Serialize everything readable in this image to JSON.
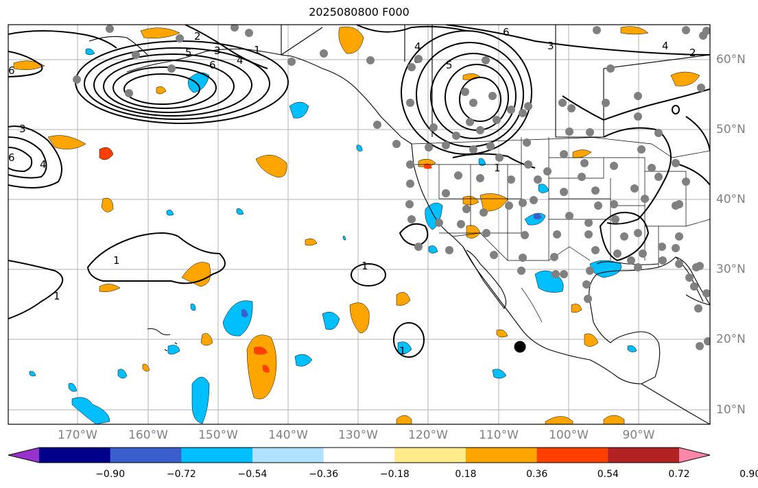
{
  "title": "2025080800 F000",
  "lat_labels": [
    "60°N",
    "50°N",
    "40°N",
    "30°N",
    "20°N",
    "10°N"
  ],
  "lon_labels": [
    "170°W",
    "160°W",
    "150°W",
    "140°W",
    "130°W",
    "120°W",
    "110°W",
    "100°W",
    "90°W"
  ],
  "colorbar": {
    "ticks": [
      "−0.90",
      "−0.72",
      "−0.54",
      "−0.36",
      "−0.18",
      "0.18",
      "0.36",
      "0.54",
      "0.72",
      "0.90"
    ],
    "colors": [
      "#9932cc",
      "#00008b",
      "#3a5fcd",
      "#00bfff",
      "#b0e2ff",
      "#ffffff",
      "#ffeb8a",
      "#ffa500",
      "#ff3f00",
      "#b22222",
      "#ff88aa"
    ]
  },
  "contour_labels": [
    "1",
    "1",
    "1",
    "1",
    "1",
    "1",
    "2",
    "2",
    "3",
    "3",
    "3",
    "4",
    "4",
    "4",
    "4",
    "5",
    "5",
    "6",
    "6",
    "6",
    "6",
    "6"
  ],
  "markers": {
    "station_color": "#808080",
    "point_color": "#000000"
  }
}
